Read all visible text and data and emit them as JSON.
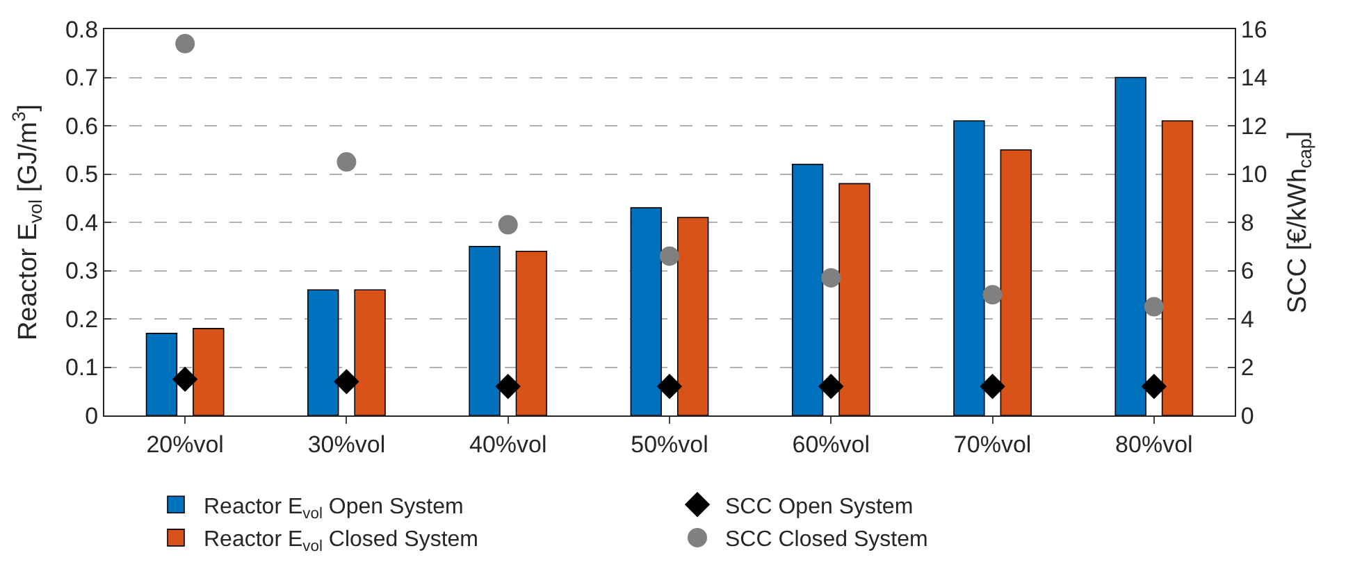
{
  "chart_data": {
    "type": "bar",
    "ylabel": "Reactor E$_{vol}$ [GJ/m$^{3}$]",
    "y2label": "SCC [€/kWh$_{cap}$]",
    "categories": [
      "20%vol",
      "30%vol",
      "40%vol",
      "50%vol",
      "60%vol",
      "70%vol",
      "80%vol"
    ],
    "series": [
      {
        "name": "Reactor E$_{vol}$ Open System",
        "color": "#0072bd",
        "values": [
          0.17,
          0.26,
          0.35,
          0.43,
          0.52,
          0.61,
          0.7
        ]
      },
      {
        "name": "SCC Open System",
        "type": "scatter",
        "axis": "y2",
        "marker": "diamond",
        "color": "#000000",
        "values": [
          1.5,
          1.4,
          1.2,
          1.2,
          1.2,
          1.2,
          1.2
        ]
      },
      {
        "name": "Reactor E$_{vol}$ Closed System",
        "color": "#d95319",
        "values": [
          0.18,
          0.26,
          0.34,
          0.41,
          0.48,
          0.55,
          0.61
        ]
      },
      {
        "name": "SCC Closed System",
        "type": "scatter",
        "axis": "y2",
        "marker": "circle",
        "color": "#808080",
        "values": [
          15.4,
          10.5,
          7.9,
          6.6,
          5.7,
          5.0,
          4.5
        ]
      }
    ],
    "ylim": [
      0,
      0.8
    ],
    "yticks": [
      0,
      0.1,
      0.2,
      0.3,
      0.4,
      0.5,
      0.6,
      0.7,
      0.8
    ],
    "y2lim": [
      0,
      16
    ],
    "y2ticks": [
      0,
      2,
      4,
      6,
      8,
      10,
      12,
      14,
      16
    ],
    "grid": "y",
    "legend": "bottom"
  }
}
